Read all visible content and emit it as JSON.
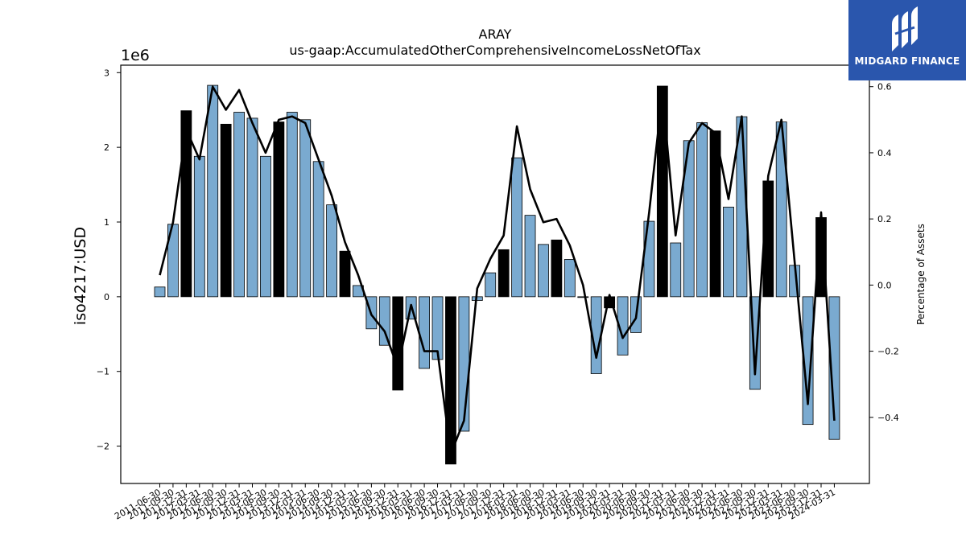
{
  "chart_data": {
    "type": "bar",
    "title": "ARAY",
    "subtitle": "us-gaap:AccumulatedOtherComprehensiveIncomeLossNetOfTax",
    "ylabel": "iso4217:USD",
    "y2label": "Percentage of Assets",
    "y_offset_label": "1e6",
    "ylim": [
      -2.5,
      3.1
    ],
    "y2lim": [
      -0.6,
      0.665
    ],
    "y_ticks": [
      "−2",
      "−1",
      "0",
      "1",
      "2",
      "3"
    ],
    "y2_ticks": [
      "−0.4",
      "−0.2",
      "0.0",
      "0.2",
      "0.4",
      "0.6"
    ],
    "categories": [
      "2011-06-30",
      "2011-09-30",
      "2011-12-31",
      "2012-03-31",
      "2012-06-30",
      "2012-09-30",
      "2012-12-31",
      "2013-03-31",
      "2013-06-30",
      "2013-09-30",
      "2013-12-31",
      "2014-03-31",
      "2014-06-30",
      "2014-09-30",
      "2014-12-31",
      "2015-03-31",
      "2015-06-30",
      "2015-09-30",
      "2015-12-31",
      "2016-03-31",
      "2016-06-30",
      "2016-09-30",
      "2016-12-31",
      "2017-03-31",
      "2017-06-30",
      "2017-09-30",
      "2017-12-31",
      "2018-03-31",
      "2018-06-30",
      "2018-09-30",
      "2018-12-31",
      "2019-03-31",
      "2019-06-30",
      "2019-09-30",
      "2019-12-31",
      "2020-03-31",
      "2020-06-30",
      "2020-09-30",
      "2020-12-31",
      "2021-03-31",
      "2021-06-30",
      "2021-09-30",
      "2021-12-31",
      "2022-03-31",
      "2022-06-30",
      "2022-09-30",
      "2022-12-31",
      "2023-03-31",
      "2023-06-30",
      "2023-09-30",
      "2023-12-31",
      "2024-03-31"
    ],
    "series": [
      {
        "kind": "bar",
        "unit": "1e6 USD",
        "values": [
          0.13,
          0.97,
          2.49,
          1.88,
          2.83,
          2.31,
          2.47,
          2.39,
          1.88,
          2.34,
          2.47,
          2.37,
          1.81,
          1.23,
          0.61,
          0.15,
          -0.43,
          -0.65,
          -1.25,
          -0.3,
          -0.96,
          -0.84,
          -2.24,
          -1.8,
          -0.05,
          0.32,
          0.63,
          1.86,
          1.09,
          0.7,
          0.76,
          0.5,
          -0.01,
          -1.03,
          -0.15,
          -0.78,
          -0.48,
          1.01,
          2.82,
          0.72,
          2.09,
          2.33,
          2.22,
          1.2,
          2.41,
          -1.24,
          1.55,
          2.34,
          0.42,
          -1.71,
          1.06,
          -1.91
        ],
        "highlight_indices": [
          2,
          5,
          9,
          14,
          18,
          22,
          26,
          30,
          34,
          38,
          42,
          46,
          50
        ],
        "color": "#7aaad0",
        "highlight_color": "#000000"
      },
      {
        "kind": "line",
        "axis": "right",
        "color": "#000000",
        "values": [
          0.03,
          0.19,
          0.47,
          0.38,
          0.6,
          0.53,
          0.59,
          0.49,
          0.4,
          0.5,
          0.51,
          0.49,
          0.38,
          0.27,
          0.13,
          0.03,
          -0.09,
          -0.14,
          -0.25,
          -0.06,
          -0.2,
          -0.2,
          -0.51,
          -0.41,
          -0.01,
          0.08,
          0.15,
          0.48,
          0.29,
          0.19,
          0.2,
          0.12,
          0.0,
          -0.22,
          -0.03,
          -0.16,
          -0.1,
          0.22,
          0.58,
          0.15,
          0.43,
          0.49,
          0.46,
          0.26,
          0.51,
          -0.27,
          0.33,
          0.5,
          0.07,
          -0.36,
          0.22,
          -0.41
        ]
      }
    ],
    "grid": false,
    "legend": "none"
  },
  "logo": {
    "text": "MIDGARD FINANCE",
    "background": "#2a56ad",
    "icon": "midgard-logo-icon"
  }
}
